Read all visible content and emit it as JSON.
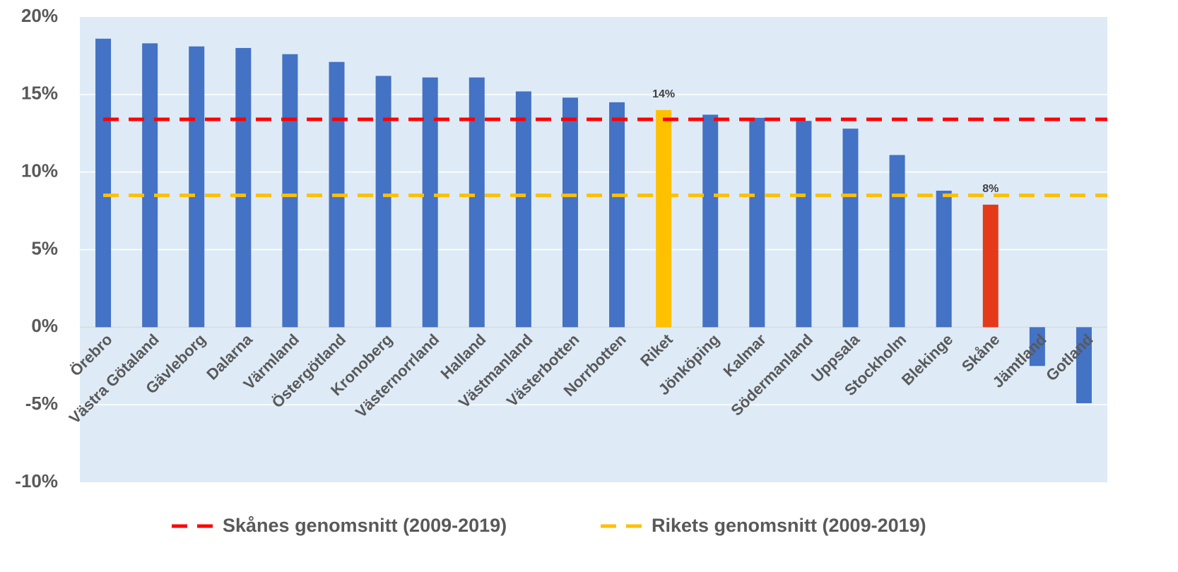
{
  "chart_data": {
    "type": "bar",
    "categories": [
      "Örebro",
      "Västra Götaland",
      "Gävleborg",
      "Dalarna",
      "Värmland",
      "Östergötland",
      "Kronoberg",
      "Västernorrland",
      "Halland",
      "Västmanland",
      "Västerbotten",
      "Norrbotten",
      "Riket",
      "Jönköping",
      "Kalmar",
      "Södermanland",
      "Uppsala",
      "Stockholm",
      "Blekinge",
      "Skåne",
      "Jämtland",
      "Gotland"
    ],
    "values": [
      18.6,
      18.3,
      18.1,
      18.0,
      17.6,
      17.1,
      16.2,
      16.1,
      16.1,
      15.2,
      14.8,
      14.5,
      14.0,
      13.7,
      13.5,
      13.3,
      12.8,
      11.1,
      8.8,
      7.9,
      -2.5,
      -4.9
    ],
    "value_labels": [
      null,
      null,
      null,
      null,
      null,
      null,
      null,
      null,
      null,
      null,
      null,
      null,
      "14%",
      null,
      null,
      null,
      null,
      null,
      null,
      "8%",
      null,
      null
    ],
    "colors": [
      "#4472c4",
      "#4472c4",
      "#4472c4",
      "#4472c4",
      "#4472c4",
      "#4472c4",
      "#4472c4",
      "#4472c4",
      "#4472c4",
      "#4472c4",
      "#4472c4",
      "#4472c4",
      "#ffc000",
      "#4472c4",
      "#4472c4",
      "#4472c4",
      "#4472c4",
      "#4472c4",
      "#4472c4",
      "#e53a1a",
      "#4472c4",
      "#4472c4"
    ],
    "reference_lines": [
      {
        "name": "Skånes genomsnitt (2009-2019)",
        "value": 13.4,
        "color": "#ff0000"
      },
      {
        "name": "Rikets genomsnitt (2009-2019)",
        "value": 8.5,
        "color": "#ffc000"
      }
    ],
    "ylim": [
      -10,
      20
    ],
    "yticks": [
      {
        "value": -10,
        "label": "-10%"
      },
      {
        "value": -5,
        "label": "-5%"
      },
      {
        "value": 0,
        "label": "0%"
      },
      {
        "value": 5,
        "label": "5%"
      },
      {
        "value": 10,
        "label": "10%"
      },
      {
        "value": 15,
        "label": "15%"
      },
      {
        "value": 20,
        "label": "20%"
      }
    ],
    "grid": true,
    "legend": "bottom"
  }
}
